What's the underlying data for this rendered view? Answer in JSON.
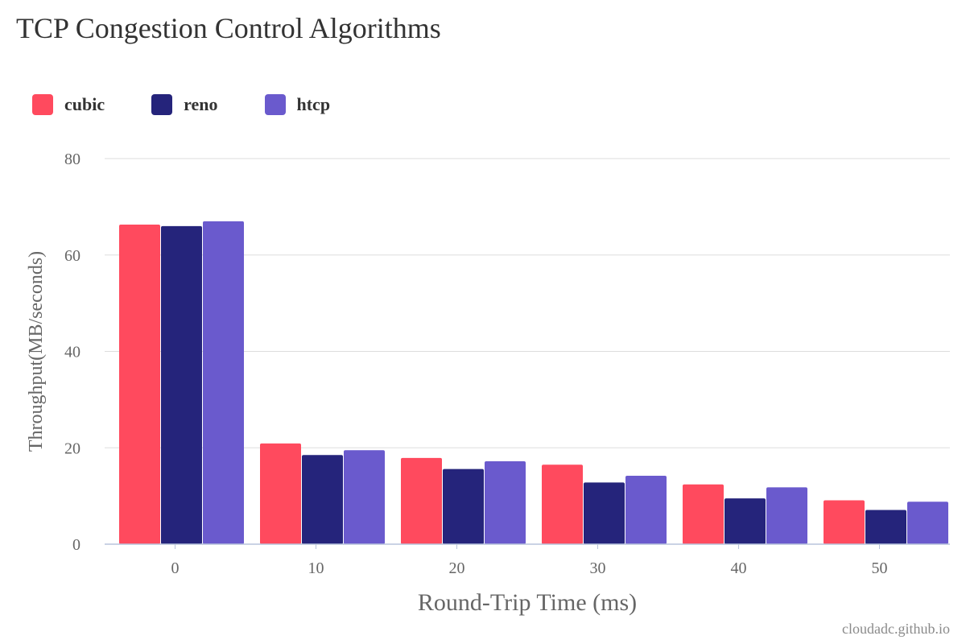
{
  "chart_data": {
    "type": "bar",
    "title": "TCP Congestion Control Algorithms",
    "xlabel": "Round-Trip Time (ms)",
    "ylabel": "Throughput(MB/seconds)",
    "categories": [
      "0",
      "10",
      "20",
      "30",
      "40",
      "50"
    ],
    "ylim": [
      0,
      80
    ],
    "yticks": [
      "0",
      "20",
      "40",
      "60",
      "80"
    ],
    "grid": true,
    "legend_position": "top-left",
    "series": [
      {
        "name": "cubic",
        "color": "#FF4A5E",
        "values": [
          66.3,
          20.9,
          17.9,
          16.5,
          12.4,
          9.1
        ]
      },
      {
        "name": "reno",
        "color": "#25247B",
        "values": [
          66.0,
          18.5,
          15.6,
          12.8,
          9.5,
          7.1
        ]
      },
      {
        "name": "htcp",
        "color": "#6A5ACD",
        "values": [
          67.0,
          19.5,
          17.2,
          14.2,
          11.8,
          8.8
        ]
      }
    ]
  },
  "watermark": "cloudadc.github.io",
  "colors": {
    "grid": "#dddddd",
    "axis": "#b8c4dc",
    "tick_label": "#666666",
    "axis_title": "#666666"
  }
}
